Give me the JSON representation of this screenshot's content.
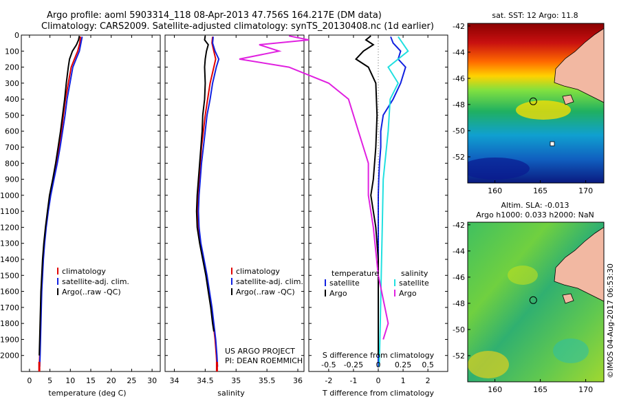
{
  "header": {
    "line1": "Argo profile: aoml 5903314_118 08-Apr-2013 47.756S 164.217E (DM data)",
    "line2": "Climatology: CARS2009. Satellite-adjusted climatology: synTS_20130408.nc (1d earlier)"
  },
  "side_label": "©IMOS 04-Aug-2017 06:53:30",
  "colors": {
    "climatology": "#e00000",
    "satellite": "#1020e0",
    "argo": "#000000",
    "argo_salinity": "#e020e0",
    "satellite_salinity": "#20e0e0",
    "land": "#f2b8a2"
  },
  "chart_data": [
    {
      "type": "line",
      "xlabel": "temperature (deg C)",
      "xticks": [
        0,
        5,
        10,
        15,
        20,
        25,
        30
      ],
      "xlim": [
        -2,
        32
      ],
      "ylim": [
        2100,
        0
      ],
      "yticks": [
        0,
        100,
        200,
        300,
        400,
        500,
        600,
        700,
        800,
        900,
        1000,
        1100,
        1200,
        1300,
        1400,
        1500,
        1600,
        1700,
        1800,
        1900,
        2000
      ],
      "legend": [
        "climatology",
        "satellite-adj. clim.",
        "Argo(..raw -QC)"
      ],
      "series": [
        {
          "name": "climatology",
          "color": "#e00000",
          "points": [
            [
              12.5,
              10
            ],
            [
              12.3,
              50
            ],
            [
              11.8,
              100
            ],
            [
              11,
              150
            ],
            [
              10.2,
              200
            ],
            [
              9.5,
              300
            ],
            [
              8.8,
              400
            ],
            [
              8.3,
              500
            ],
            [
              7.8,
              600
            ],
            [
              7.2,
              700
            ],
            [
              6.5,
              800
            ],
            [
              5.8,
              900
            ],
            [
              5,
              1000
            ],
            [
              4.5,
              1100
            ],
            [
              4,
              1200
            ],
            [
              3.6,
              1300
            ],
            [
              3.3,
              1400
            ],
            [
              3.1,
              1500
            ],
            [
              2.9,
              1600
            ],
            [
              2.8,
              1700
            ],
            [
              2.7,
              1800
            ],
            [
              2.6,
              1900
            ],
            [
              2.5,
              2000
            ],
            [
              2.4,
              2070
            ]
          ]
        },
        {
          "name": "satellite-adj. clim.",
          "color": "#1020e0",
          "points": [
            [
              12.9,
              10
            ],
            [
              12.6,
              50
            ],
            [
              12.2,
              100
            ],
            [
              11.4,
              150
            ],
            [
              10.6,
              200
            ],
            [
              9.9,
              300
            ],
            [
              9.2,
              400
            ],
            [
              8.7,
              500
            ],
            [
              8.1,
              600
            ],
            [
              7.5,
              700
            ],
            [
              6.8,
              800
            ],
            [
              6,
              900
            ],
            [
              5.2,
              1000
            ],
            [
              4.6,
              1100
            ],
            [
              4.1,
              1200
            ],
            [
              3.7,
              1300
            ],
            [
              3.4,
              1400
            ],
            [
              3.2,
              1500
            ],
            [
              3,
              1600
            ],
            [
              2.9,
              1700
            ],
            [
              2.8,
              1800
            ],
            [
              2.7,
              1900
            ],
            [
              2.6,
              2000
            ],
            [
              2.5,
              2070
            ]
          ]
        },
        {
          "name": "Argo(..raw -QC)",
          "color": "#000000",
          "points": [
            [
              12.2,
              5
            ],
            [
              12,
              30
            ],
            [
              11.5,
              60
            ],
            [
              10.5,
              100
            ],
            [
              9.8,
              150
            ],
            [
              9.5,
              200
            ],
            [
              9,
              300
            ],
            [
              8.6,
              400
            ],
            [
              8.1,
              500
            ],
            [
              7.6,
              600
            ],
            [
              7,
              700
            ],
            [
              6.4,
              800
            ],
            [
              5.7,
              900
            ],
            [
              4.9,
              1000
            ],
            [
              4.4,
              1100
            ],
            [
              3.9,
              1200
            ],
            [
              3.5,
              1300
            ],
            [
              3.2,
              1400
            ],
            [
              3,
              1500
            ],
            [
              2.8,
              1600
            ],
            [
              2.7,
              1700
            ],
            [
              2.6,
              1800
            ],
            [
              2.5,
              1900
            ],
            [
              2.4,
              2000
            ]
          ]
        }
      ]
    },
    {
      "type": "line",
      "xlabel": "salinity",
      "xticks": [
        34,
        34.5,
        35,
        35.5,
        36
      ],
      "xlim": [
        33.85,
        36.1
      ],
      "ylim": [
        2100,
        0
      ],
      "legend": [
        "climatology",
        "satellite-adj. clim.",
        "Argo(..raw -QC)"
      ],
      "series": [
        {
          "name": "climatology",
          "color": "#e00000",
          "points": [
            [
              34.62,
              10
            ],
            [
              34.61,
              50
            ],
            [
              34.64,
              100
            ],
            [
              34.67,
              150
            ],
            [
              34.64,
              200
            ],
            [
              34.58,
              300
            ],
            [
              34.54,
              400
            ],
            [
              34.5,
              500
            ],
            [
              34.47,
              600
            ],
            [
              34.44,
              700
            ],
            [
              34.42,
              800
            ],
            [
              34.4,
              900
            ],
            [
              34.38,
              1000
            ],
            [
              34.37,
              1100
            ],
            [
              34.38,
              1200
            ],
            [
              34.42,
              1300
            ],
            [
              34.47,
              1400
            ],
            [
              34.52,
              1500
            ],
            [
              34.56,
              1600
            ],
            [
              34.6,
              1700
            ],
            [
              34.63,
              1800
            ],
            [
              34.66,
              1900
            ],
            [
              34.68,
              2000
            ],
            [
              34.69,
              2070
            ]
          ]
        },
        {
          "name": "satellite-adj. clim.",
          "color": "#1020e0",
          "points": [
            [
              34.63,
              10
            ],
            [
              34.62,
              50
            ],
            [
              34.66,
              100
            ],
            [
              34.72,
              150
            ],
            [
              34.68,
              200
            ],
            [
              34.62,
              300
            ],
            [
              34.58,
              400
            ],
            [
              34.53,
              500
            ],
            [
              34.5,
              600
            ],
            [
              34.47,
              700
            ],
            [
              34.44,
              800
            ],
            [
              34.42,
              900
            ],
            [
              34.4,
              1000
            ],
            [
              34.39,
              1100
            ],
            [
              34.4,
              1200
            ],
            [
              34.43,
              1300
            ],
            [
              34.48,
              1400
            ],
            [
              34.53,
              1500
            ],
            [
              34.57,
              1600
            ],
            [
              34.61,
              1700
            ],
            [
              34.64,
              1800
            ],
            [
              34.67,
              1900
            ],
            [
              34.69,
              2000
            ],
            [
              34.7,
              2070
            ]
          ]
        },
        {
          "name": "Argo(..raw -QC)",
          "color": "#000000",
          "points": [
            [
              34.5,
              5
            ],
            [
              34.49,
              30
            ],
            [
              34.55,
              60
            ],
            [
              34.52,
              100
            ],
            [
              34.5,
              150
            ],
            [
              34.49,
              200
            ],
            [
              34.5,
              300
            ],
            [
              34.49,
              400
            ],
            [
              34.46,
              500
            ],
            [
              34.45,
              600
            ],
            [
              34.43,
              700
            ],
            [
              34.41,
              800
            ],
            [
              34.39,
              900
            ],
            [
              34.37,
              1000
            ],
            [
              34.36,
              1100
            ],
            [
              34.37,
              1200
            ],
            [
              34.41,
              1300
            ],
            [
              34.46,
              1400
            ],
            [
              34.51,
              1500
            ],
            [
              34.55,
              1600
            ],
            [
              34.59,
              1700
            ],
            [
              34.62,
              1800
            ],
            [
              34.64,
              1850
            ]
          ]
        }
      ]
    },
    {
      "type": "line",
      "xlabel": "T difference from climatology",
      "xlabel2": "S difference from climatology",
      "xticks": [
        -2,
        -1,
        0,
        1,
        2
      ],
      "xticks2": [
        -0.5,
        -0.25,
        0,
        0.25,
        0.5
      ],
      "xticks2_labels": [
        "-0.5",
        "-0.25",
        "0",
        "0.25",
        "0.5"
      ],
      "xlim": [
        -2.8,
        2.8
      ],
      "ylim": [
        2100,
        0
      ],
      "legend_groups": {
        "temperature": "temperature",
        "salinity": "salinity"
      },
      "legend": [
        "satellite",
        "Argo",
        "satellite",
        "Argo"
      ],
      "series": [
        {
          "name": "satellite",
          "group": "temperature",
          "color": "#1020e0",
          "points": [
            [
              0.5,
              10
            ],
            [
              0.6,
              50
            ],
            [
              0.9,
              100
            ],
            [
              0.8,
              150
            ],
            [
              1.1,
              200
            ],
            [
              0.9,
              300
            ],
            [
              0.6,
              400
            ],
            [
              0.2,
              500
            ],
            [
              0.1,
              600
            ],
            [
              0.1,
              700
            ],
            [
              0.05,
              800
            ],
            [
              0.02,
              900
            ],
            [
              0,
              1000
            ],
            [
              0,
              1200
            ],
            [
              0,
              1500
            ],
            [
              0,
              1800
            ],
            [
              0,
              2000
            ],
            [
              0,
              2070
            ]
          ]
        },
        {
          "name": "Argo",
          "group": "temperature",
          "color": "#000000",
          "points": [
            [
              -0.3,
              5
            ],
            [
              -0.5,
              30
            ],
            [
              -0.2,
              60
            ],
            [
              -0.6,
              100
            ],
            [
              -0.9,
              150
            ],
            [
              -0.4,
              200
            ],
            [
              -0.1,
              300
            ],
            [
              -0.05,
              500
            ],
            [
              -0.1,
              700
            ],
            [
              -0.2,
              900
            ],
            [
              -0.3,
              1000
            ],
            [
              -0.2,
              1100
            ],
            [
              -0.1,
              1200
            ],
            [
              0,
              1400
            ],
            [
              0,
              1700
            ],
            [
              0,
              2000
            ]
          ]
        },
        {
          "name": "satellite",
          "group": "salinity",
          "color": "#20e0e0",
          "points": [
            [
              0.2,
              10
            ],
            [
              0.3,
              100
            ],
            [
              0.1,
              200
            ],
            [
              0.2,
              300
            ],
            [
              0.12,
              400
            ],
            [
              0.1,
              600
            ],
            [
              0.05,
              900
            ],
            [
              0.04,
              1200
            ],
            [
              0.03,
              1500
            ],
            [
              0.02,
              1800
            ],
            [
              0.01,
              2070
            ]
          ]
        },
        {
          "name": "Argo",
          "group": "salinity",
          "color": "#e020e0",
          "points": [
            [
              -0.9,
              5
            ],
            [
              -0.7,
              30
            ],
            [
              -1.2,
              60
            ],
            [
              -1.0,
              100
            ],
            [
              -1.4,
              150
            ],
            [
              -0.9,
              200
            ],
            [
              -0.5,
              300
            ],
            [
              -0.3,
              400
            ],
            [
              -0.2,
              600
            ],
            [
              -0.1,
              800
            ],
            [
              -0.1,
              1000
            ],
            [
              -0.05,
              1200
            ],
            [
              0,
              1500
            ],
            [
              0.1,
              1800
            ],
            [
              0.05,
              1900
            ]
          ]
        }
      ],
      "annotations": [
        "US ARGO PROJECT",
        "PI: DEAN ROEMMICH"
      ]
    },
    {
      "type": "heatmap",
      "title": "sat. SST: 12 Argo: 11.8",
      "xticks": [
        160,
        165,
        170
      ],
      "yticks": [
        -42,
        -44,
        -46,
        -48,
        -50,
        -52
      ],
      "xlim": [
        157,
        172
      ],
      "ylim": [
        -54,
        -41.8
      ],
      "marker": [
        164.217,
        -47.756
      ]
    },
    {
      "type": "heatmap",
      "title": "Altim. SLA: -0.013",
      "subtitle": "Argo h1000: 0.033 h2000: NaN",
      "xticks": [
        160,
        165,
        170
      ],
      "yticks": [
        -42,
        -44,
        -46,
        -48,
        -50,
        -52
      ],
      "xlim": [
        157,
        172
      ],
      "ylim": [
        -54,
        -41.8
      ],
      "marker": [
        164.217,
        -47.756
      ]
    }
  ]
}
